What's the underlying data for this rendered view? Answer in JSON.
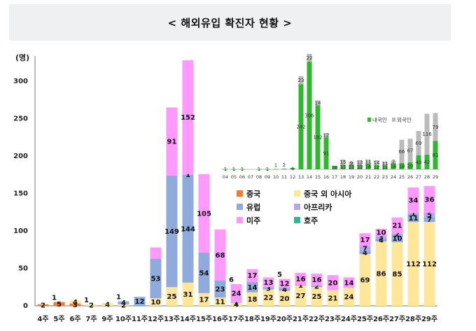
{
  "title": "< 해외유입 확진자 현황 >",
  "chart_data": [
    {
      "type": "bar",
      "stacked": true,
      "unit_label": "(명)",
      "ylim": [
        0,
        330
      ],
      "yticks": [
        0,
        50,
        100,
        150,
        200,
        250,
        300
      ],
      "grid": false,
      "categories": [
        "4주",
        "5주",
        "6주",
        "7주",
        "9주",
        "10주",
        "11주",
        "12주",
        "13주",
        "14주",
        "15주",
        "16주",
        "17주",
        "18주",
        "19주",
        "20주",
        "21주",
        "22주",
        "23주",
        "24주",
        "25주",
        "26주",
        "27주",
        "28주",
        "29주"
      ],
      "series": [
        {
          "name": "중국",
          "color": "#ed7d31",
          "values": [
            2,
            5,
            3,
            0,
            0,
            0,
            0,
            0,
            0,
            0,
            0,
            0,
            0,
            0,
            0,
            0,
            0,
            0,
            0,
            0,
            0,
            0,
            0,
            0,
            0
          ],
          "labels": [
            "2",
            "5",
            "3",
            "",
            "",
            "",
            "",
            "",
            "",
            "",
            "",
            "",
            "",
            "",
            "",
            "",
            "",
            "",
            "",
            "",
            "",
            "",
            "",
            "",
            ""
          ]
        },
        {
          "name": "중국 외 아시아",
          "color": "#ffe699",
          "values": [
            0,
            0,
            4,
            2,
            4,
            2,
            0,
            10,
            25,
            31,
            17,
            11,
            4,
            18,
            22,
            20,
            27,
            25,
            21,
            24,
            69,
            86,
            85,
            112,
            112
          ],
          "labels": [
            "",
            "",
            "4",
            "2",
            "4",
            "2",
            "",
            "10",
            "25",
            "31",
            "17",
            "11",
            "4",
            "18",
            "22",
            "20",
            "27",
            "25",
            "21",
            "24",
            "69",
            "86",
            "85",
            "112",
            "112"
          ]
        },
        {
          "name": "유럽",
          "color": "#8faadc",
          "values": [
            0,
            0,
            0,
            0,
            0,
            4,
            12,
            53,
            149,
            144,
            54,
            23,
            1,
            14,
            3,
            4,
            1,
            2,
            0,
            0,
            4,
            4,
            10,
            11,
            7
          ],
          "labels": [
            "",
            "",
            "",
            "",
            "",
            "4",
            "12",
            "53",
            "149",
            "144",
            "54",
            "23",
            "1",
            "14",
            "3",
            "4",
            "1",
            "2",
            "",
            "",
            "4",
            "4",
            "10",
            "11",
            "7"
          ]
        },
        {
          "name": "아프리카",
          "color": "#b4a7f0",
          "values": [
            0,
            0,
            0,
            0,
            0,
            0,
            0,
            0,
            0,
            1,
            0,
            0,
            0,
            0,
            0,
            0,
            0,
            0,
            0,
            0,
            7,
            3,
            2,
            1,
            5
          ],
          "labels": [
            "",
            "",
            "",
            "",
            "",
            "",
            "",
            "",
            "",
            "1",
            "",
            "",
            "",
            "",
            "",
            "",
            "",
            "",
            "",
            "",
            "7",
            "3",
            "2",
            "1",
            "5"
          ]
        },
        {
          "name": "미주",
          "color": "#ff99ff",
          "values": [
            0,
            0,
            0,
            0,
            0,
            0,
            0,
            15,
            91,
            152,
            105,
            68,
            24,
            17,
            13,
            12,
            16,
            16,
            20,
            14,
            17,
            10,
            21,
            34,
            36
          ],
          "labels": [
            "",
            "",
            "",
            "",
            "",
            "",
            "",
            "",
            "91",
            "152",
            "105",
            "68",
            "24",
            "17",
            "13",
            "12",
            "16",
            "16",
            "20",
            "14",
            "17",
            "10",
            "21",
            "34",
            "36"
          ]
        },
        {
          "name": "호주",
          "color": "#33b59a",
          "values": [
            0,
            0,
            0,
            0,
            0,
            0,
            0,
            0,
            0,
            0,
            0,
            0,
            0,
            0,
            0,
            0,
            0,
            0,
            0,
            0,
            0,
            0,
            0,
            0,
            0
          ],
          "labels": [
            "",
            "",
            "",
            "",
            "",
            "",
            "",
            "",
            "",
            "",
            "",
            "",
            "",
            "",
            "",
            "",
            "",
            "",
            "",
            "",
            "",
            "",
            "",
            "",
            ""
          ]
        }
      ],
      "extra_labels": [
        {
          "category": "5주",
          "text": "1"
        },
        {
          "category": "7주",
          "text": "1"
        },
        {
          "category": "10주",
          "text": "1"
        },
        {
          "category": "17주",
          "text": "6"
        },
        {
          "category": "20주",
          "text": "5"
        }
      ],
      "legend": [
        "중국",
        "중국 외 아시아",
        "유럽",
        "아프리카",
        "미주",
        "호주"
      ]
    },
    {
      "type": "bar",
      "stacked": true,
      "categories": [
        "04",
        "05",
        "06",
        "07",
        "08",
        "09",
        "10",
        "11",
        "12",
        "13",
        "14",
        "15",
        "16",
        "17",
        "18",
        "19",
        "20",
        "21",
        "22",
        "23",
        "24",
        "25",
        "26",
        "27",
        "28",
        "29"
      ],
      "series": [
        {
          "name": "내국인",
          "color": "#2db82d",
          "values": [
            1,
            1,
            1,
            0,
            1,
            1,
            1,
            2,
            4,
            242,
            306,
            182,
            91,
            10,
            13,
            13,
            13,
            16,
            12,
            11,
            18,
            18,
            20,
            40,
            42,
            81
          ],
          "labels": [
            "1",
            "1",
            "1",
            "",
            "1",
            "1",
            "",
            "",
            "4",
            "242",
            "306",
            "182",
            "91",
            "10",
            "13",
            "13",
            "13",
            "16",
            "12",
            "11",
            "18",
            "18",
            "20",
            "40",
            "42",
            "81"
          ]
        },
        {
          "name": "외국인",
          "color": "#bbbbbb",
          "values": [
            0,
            0,
            0,
            0,
            0,
            0,
            0,
            0,
            0,
            23,
            22,
            14,
            12,
            0,
            15,
            9,
            13,
            11,
            14,
            11,
            7,
            66,
            67,
            69,
            116,
            79
          ],
          "labels": [
            "",
            "",
            "",
            "",
            "",
            "",
            "",
            "",
            "",
            "23",
            "22",
            "14",
            "12",
            "",
            "15",
            "9",
            "13",
            "11",
            "14",
            "11",
            "7",
            "66",
            "67",
            "69",
            "116",
            "79"
          ]
        }
      ],
      "extra_labels": [
        {
          "category": "10",
          "text": "1"
        },
        {
          "category": "11",
          "text": "2"
        }
      ],
      "ymax": 330,
      "legend": [
        "내국인",
        "외국인"
      ]
    }
  ]
}
